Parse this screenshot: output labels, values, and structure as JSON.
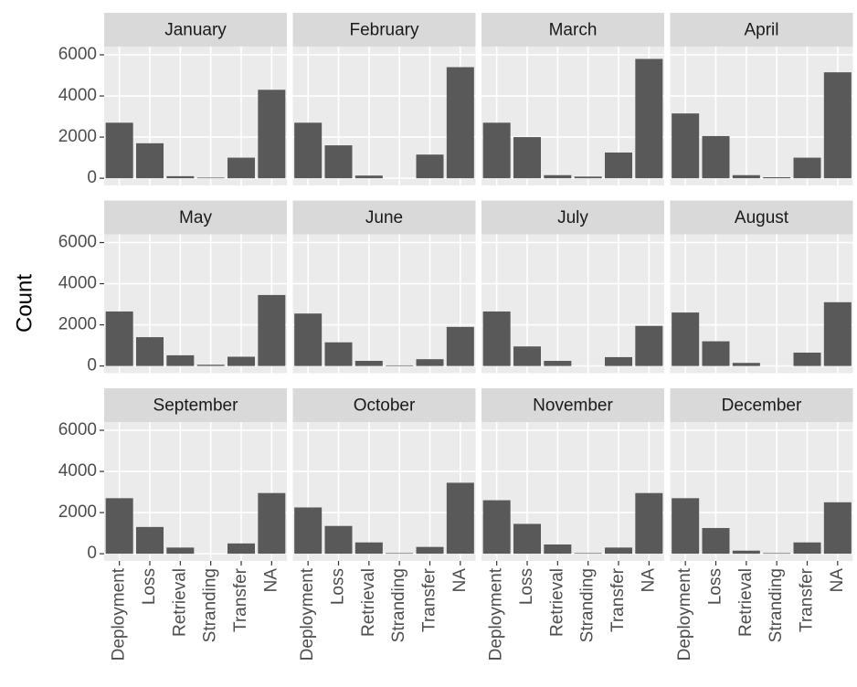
{
  "chart_data": {
    "type": "bar",
    "y_label": "Count",
    "categories": [
      "Deployment",
      "Loss",
      "Retrieval",
      "Stranding",
      "Transfer",
      "NA"
    ],
    "color": "#595959",
    "panel_color": "#ebebeb",
    "strip_color": "#d9d9d9",
    "grid": true,
    "ylim": [
      -350,
      6400
    ],
    "yticks": [
      0,
      2000,
      4000,
      6000
    ],
    "columns": 4,
    "facets": [
      {
        "title": "January",
        "values": [
          2700,
          1700,
          100,
          30,
          1000,
          4300
        ]
      },
      {
        "title": "February",
        "values": [
          2700,
          1600,
          130,
          0,
          1150,
          5400
        ]
      },
      {
        "title": "March",
        "values": [
          2700,
          2000,
          150,
          80,
          1250,
          5800
        ]
      },
      {
        "title": "April",
        "values": [
          3150,
          2050,
          150,
          50,
          1000,
          5150
        ]
      },
      {
        "title": "May",
        "values": [
          2650,
          1400,
          520,
          60,
          450,
          3450
        ]
      },
      {
        "title": "June",
        "values": [
          2550,
          1150,
          250,
          30,
          330,
          1900
        ]
      },
      {
        "title": "July",
        "values": [
          2650,
          950,
          250,
          0,
          430,
          1950
        ]
      },
      {
        "title": "August",
        "values": [
          2600,
          1200,
          150,
          0,
          650,
          3100
        ]
      },
      {
        "title": "September",
        "values": [
          2700,
          1300,
          300,
          0,
          500,
          2950
        ]
      },
      {
        "title": "October",
        "values": [
          2250,
          1350,
          550,
          30,
          330,
          3450
        ]
      },
      {
        "title": "November",
        "values": [
          2600,
          1450,
          450,
          30,
          300,
          2950
        ]
      },
      {
        "title": "December",
        "values": [
          2700,
          1250,
          150,
          30,
          550,
          2500
        ]
      }
    ]
  }
}
